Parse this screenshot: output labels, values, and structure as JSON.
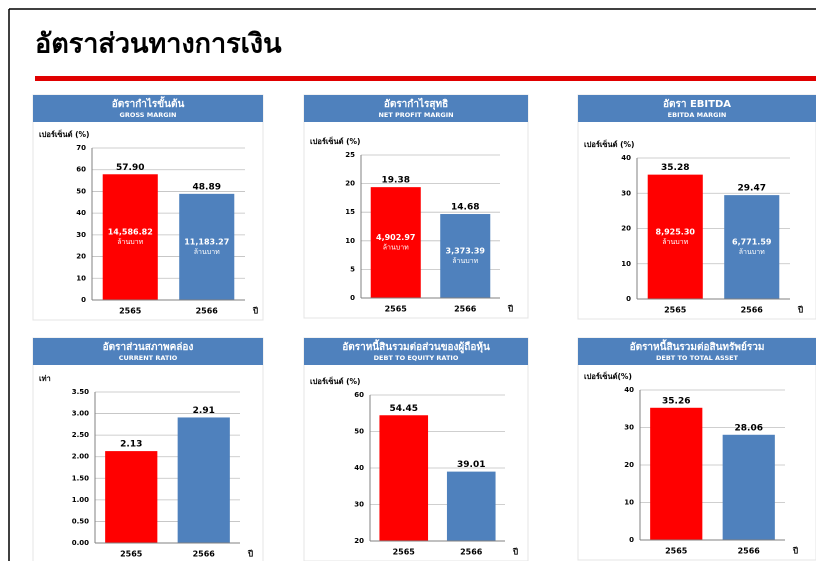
{
  "title": "อัตราส่วนทางการเงิน",
  "chart_data": [
    {
      "type": "bar",
      "title": "อัตรากำไรขั้นต้น",
      "subtitle": "GROSS MARGIN",
      "y_label": "เปอร์เซ็นต์ (%)",
      "x_label": "ปี",
      "categories": [
        "2565",
        "2566"
      ],
      "values": [
        57.9,
        48.89
      ],
      "value_labels": [
        "57.90",
        "48.89"
      ],
      "colors": [
        "#ff0000",
        "#4f81bd"
      ],
      "inner_labels": [
        "14,586.82",
        "11,183.27"
      ],
      "inner_unit": "ล้านบาท",
      "ylim": [
        0,
        70
      ],
      "yticks": [
        0,
        10,
        20,
        30,
        40,
        50,
        60,
        70
      ],
      "grid": true
    },
    {
      "type": "bar",
      "title": "อัตรากำไรสุทธิ",
      "subtitle": "NET PROFIT MARGIN",
      "y_label": "เปอร์เซ็นต์ (%)",
      "x_label": "ปี",
      "categories": [
        "2565",
        "2566"
      ],
      "values": [
        19.38,
        14.68
      ],
      "value_labels": [
        "19.38",
        "14.68"
      ],
      "colors": [
        "#ff0000",
        "#4f81bd"
      ],
      "inner_labels": [
        "4,902.97",
        "3,373.39"
      ],
      "inner_unit": "ล้านบาท",
      "ylim": [
        0,
        25
      ],
      "yticks": [
        0,
        5,
        10,
        15,
        20,
        25
      ],
      "grid": true
    },
    {
      "type": "bar",
      "title": "อัตรา EBITDA",
      "subtitle": "EBITDA MARGIN",
      "y_label": "เปอร์เซ็นต์ (%)",
      "x_label": "ปี",
      "categories": [
        "2565",
        "2566"
      ],
      "values": [
        35.28,
        29.47
      ],
      "value_labels": [
        "35.28",
        "29.47"
      ],
      "colors": [
        "#ff0000",
        "#4f81bd"
      ],
      "inner_labels": [
        "8,925.30",
        "6,771.59"
      ],
      "inner_unit": "ล้านบาท",
      "ylim": [
        0,
        40
      ],
      "yticks": [
        0,
        10,
        20,
        30,
        40
      ],
      "grid": true
    },
    {
      "type": "bar",
      "title": "อัตราส่วนสภาพคล่อง",
      "subtitle": "CURRENT RATIO",
      "y_label": "เท่า",
      "x_label": "ปี",
      "categories": [
        "2565",
        "2566"
      ],
      "values": [
        2.13,
        2.91
      ],
      "value_labels": [
        "2.13",
        "2.91"
      ],
      "colors": [
        "#ff0000",
        "#4f81bd"
      ],
      "ylim": [
        0,
        3.5
      ],
      "yticks": [
        {
          "value": 0,
          "label": "0.00"
        },
        {
          "value": 0.5,
          "label": "0.50"
        },
        {
          "value": 1,
          "label": "1.00"
        },
        {
          "value": 1.5,
          "label": "1.50"
        },
        {
          "value": 2,
          "label": "2.00"
        },
        {
          "value": 2.5,
          "label": "2.50"
        },
        {
          "value": 3,
          "label": "3.00"
        },
        {
          "value": 3.5,
          "label": "3.50"
        }
      ],
      "grid": true
    },
    {
      "type": "bar",
      "title": "อัตราหนี้สินรวมต่อส่วนของผู้ถือหุ้น",
      "subtitle": "DEBT TO EQUITY RATIO",
      "y_label": "เปอร์เซ็นต์ (%)",
      "x_label": "ปี",
      "categories": [
        "2565",
        "2566"
      ],
      "values": [
        54.45,
        39.01
      ],
      "value_labels": [
        "54.45",
        "39.01"
      ],
      "colors": [
        "#ff0000",
        "#4f81bd"
      ],
      "ylim": [
        20,
        60
      ],
      "yticks": [
        20,
        30,
        40,
        50,
        60
      ],
      "grid": true
    },
    {
      "type": "bar",
      "title": "อัตราหนี้สินรวมต่อสินทรัพย์รวม",
      "subtitle": "DEBT TO TOTAL ASSET",
      "y_label": "เปอร์เซ็นต์(%)",
      "x_label": "ปี",
      "categories": [
        "2565",
        "2566"
      ],
      "values": [
        35.26,
        28.06
      ],
      "value_labels": [
        "35.26",
        "28.06"
      ],
      "colors": [
        "#ff0000",
        "#4f81bd"
      ],
      "ylim": [
        0,
        40
      ],
      "yticks": [
        0,
        10,
        20,
        30,
        40
      ],
      "grid": true
    }
  ]
}
